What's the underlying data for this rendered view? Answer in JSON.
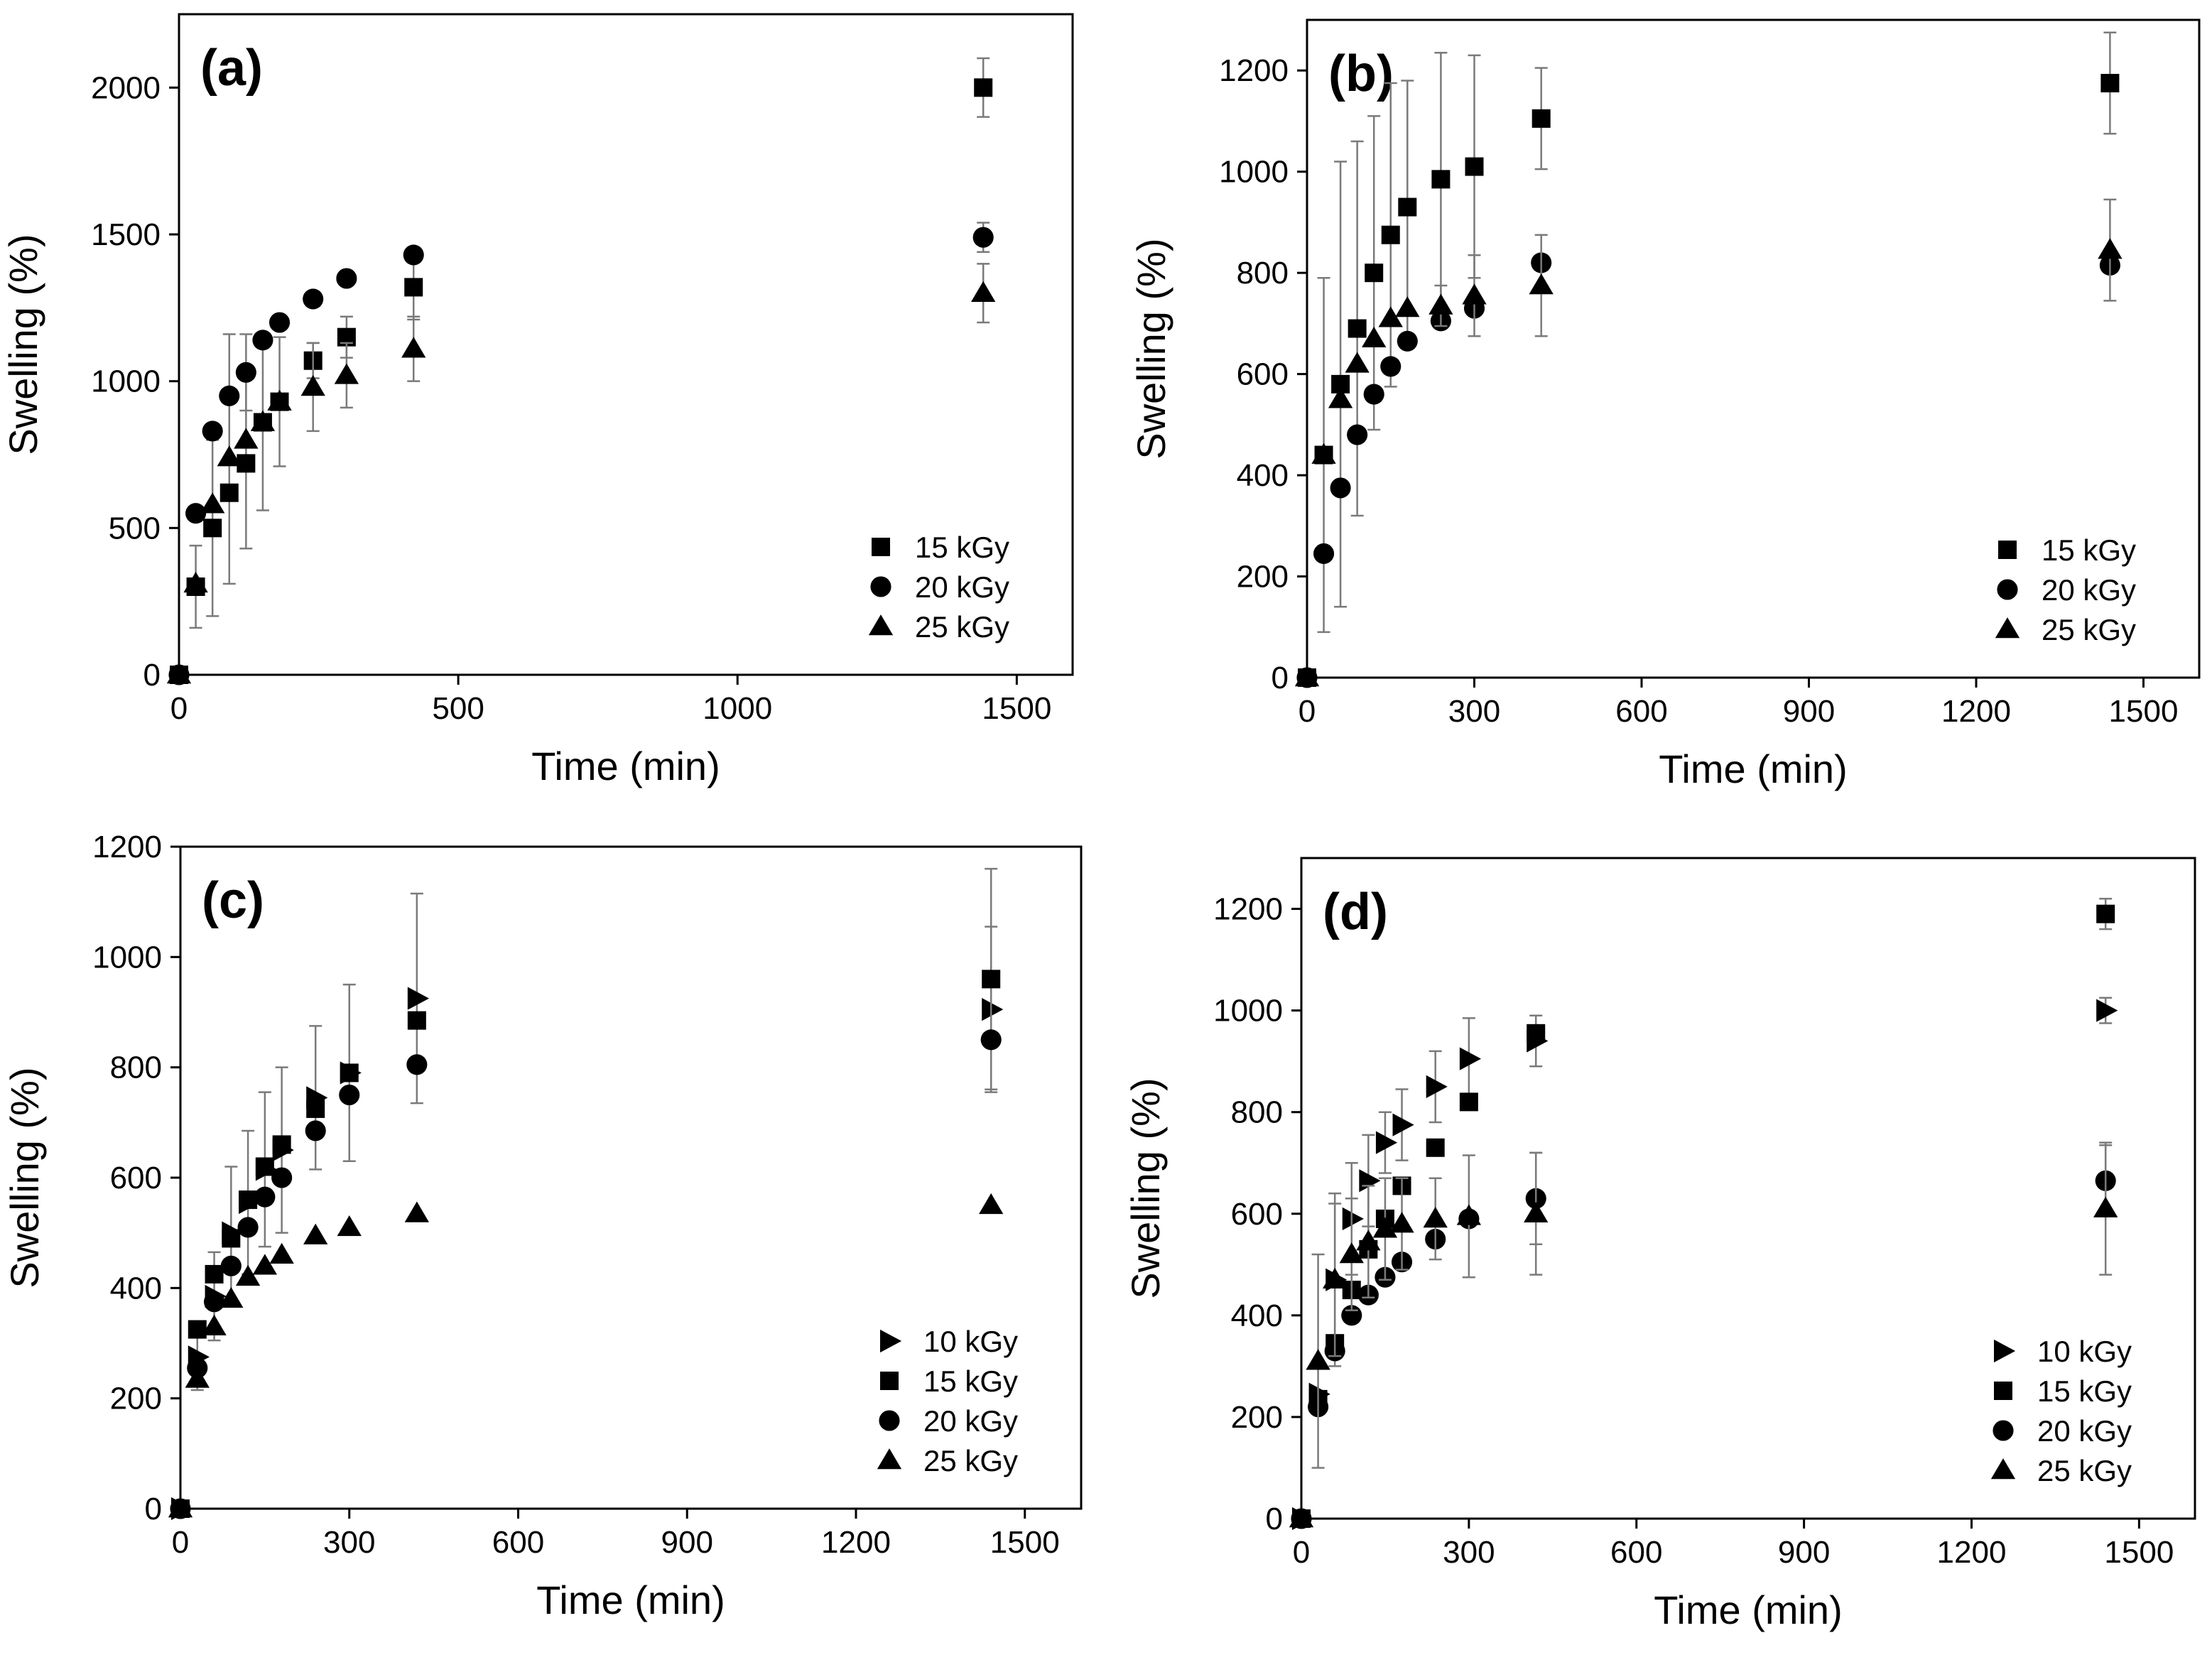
{
  "chart_data": [
    {
      "type": "scatter",
      "panel_label": "(a)",
      "xlabel": "Time (min)",
      "ylabel": "Swelling (%)",
      "xlim": [
        0,
        1600
      ],
      "ylim": [
        0,
        2250
      ],
      "x_ticks": [
        0,
        500,
        1000,
        1500
      ],
      "y_ticks": [
        0,
        500,
        1000,
        1500,
        2000
      ],
      "legend_position": "bottom-right",
      "series": [
        {
          "name": "15 kGy",
          "marker": "square",
          "x": [
            0,
            30,
            60,
            90,
            120,
            150,
            180,
            240,
            300,
            420,
            1440
          ],
          "y": [
            0,
            300,
            500,
            620,
            720,
            860,
            930,
            1070,
            1150,
            1320,
            2000
          ],
          "err": [
            0,
            140,
            300,
            310,
            290,
            300,
            220,
            60,
            70,
            110,
            100
          ]
        },
        {
          "name": "20 kGy",
          "marker": "circle",
          "x": [
            0,
            30,
            60,
            90,
            120,
            150,
            180,
            240,
            300,
            420,
            1440
          ],
          "y": [
            0,
            550,
            830,
            950,
            1030,
            1140,
            1200,
            1280,
            1350,
            1430,
            1490
          ],
          "err": [
            0,
            0,
            0,
            210,
            130,
            0,
            0,
            0,
            0,
            0,
            50
          ]
        },
        {
          "name": "25 kGy",
          "marker": "triangle-up",
          "x": [
            0,
            30,
            60,
            90,
            120,
            150,
            180,
            240,
            300,
            420,
            1440
          ],
          "y": [
            0,
            310,
            580,
            740,
            800,
            860,
            930,
            980,
            1020,
            1110,
            1300
          ],
          "err": [
            0,
            0,
            0,
            0,
            0,
            0,
            0,
            150,
            110,
            110,
            100
          ]
        }
      ]
    },
    {
      "type": "scatter",
      "panel_label": "(b)",
      "xlabel": "Time (min)",
      "ylabel": "Swelling (%)",
      "xlim": [
        0,
        1600
      ],
      "ylim": [
        0,
        1300
      ],
      "x_ticks": [
        0,
        300,
        600,
        900,
        1200,
        1500
      ],
      "y_ticks": [
        0,
        200,
        400,
        600,
        800,
        1000,
        1200
      ],
      "legend_position": "bottom-right",
      "series": [
        {
          "name": "15 kGy",
          "marker": "square",
          "x": [
            0,
            30,
            60,
            90,
            120,
            150,
            180,
            240,
            300,
            420,
            1440
          ],
          "y": [
            0,
            440,
            580,
            690,
            800,
            875,
            930,
            985,
            1010,
            1105,
            1175
          ],
          "err": [
            0,
            350,
            440,
            370,
            310,
            300,
            250,
            250,
            220,
            100,
            100
          ]
        },
        {
          "name": "20 kGy",
          "marker": "circle",
          "x": [
            0,
            30,
            60,
            90,
            120,
            150,
            180,
            240,
            300,
            420,
            1440
          ],
          "y": [
            0,
            245,
            375,
            480,
            560,
            615,
            665,
            705,
            730,
            820,
            815
          ]
        },
        {
          "name": "25 kGy",
          "marker": "triangle-up",
          "x": [
            0,
            30,
            60,
            90,
            120,
            150,
            180,
            240,
            300,
            420,
            1440
          ],
          "y": [
            0,
            440,
            550,
            620,
            670,
            710,
            730,
            735,
            755,
            775,
            845
          ],
          "err": [
            0,
            0,
            0,
            0,
            0,
            0,
            0,
            40,
            80,
            100,
            100
          ]
        }
      ]
    },
    {
      "type": "scatter",
      "panel_label": "(c)",
      "xlabel": "Time (min)",
      "ylabel": "Swelling (%)",
      "xlim": [
        0,
        1600
      ],
      "ylim": [
        0,
        1200
      ],
      "x_ticks": [
        0,
        300,
        600,
        900,
        1200,
        1500
      ],
      "y_ticks": [
        0,
        200,
        400,
        600,
        800,
        1000,
        1200
      ],
      "legend_position": "bottom-right",
      "series": [
        {
          "name": "10 kGy",
          "marker": "triangle-right",
          "x": [
            0,
            30,
            60,
            90,
            120,
            150,
            180,
            240,
            300,
            420,
            1440
          ],
          "y": [
            0,
            275,
            385,
            500,
            555,
            615,
            650,
            745,
            790,
            925,
            905
          ],
          "err": [
            0,
            60,
            80,
            120,
            130,
            140,
            150,
            130,
            160,
            190,
            150
          ]
        },
        {
          "name": "15 kGy",
          "marker": "square",
          "x": [
            0,
            30,
            60,
            90,
            120,
            150,
            180,
            240,
            300,
            420,
            1440
          ],
          "y": [
            0,
            325,
            425,
            490,
            560,
            620,
            660,
            725,
            790,
            885,
            960
          ],
          "err": [
            0,
            0,
            0,
            0,
            0,
            0,
            0,
            0,
            0,
            0,
            200
          ]
        },
        {
          "name": "20 kGy",
          "marker": "circle",
          "x": [
            0,
            30,
            60,
            90,
            120,
            150,
            180,
            240,
            300,
            420,
            1440
          ],
          "y": [
            0,
            255,
            375,
            440,
            510,
            565,
            600,
            685,
            750,
            805,
            850
          ]
        },
        {
          "name": "25 kGy",
          "marker": "triangle-up",
          "x": [
            0,
            30,
            60,
            90,
            120,
            150,
            180,
            240,
            300,
            420,
            1440
          ],
          "y": [
            0,
            235,
            330,
            380,
            420,
            440,
            460,
            495,
            510,
            535,
            550
          ]
        }
      ]
    },
    {
      "type": "scatter",
      "panel_label": "(d)",
      "xlabel": "Time (min)",
      "ylabel": "Swelling (%)",
      "xlim": [
        0,
        1600
      ],
      "ylim": [
        0,
        1300
      ],
      "x_ticks": [
        0,
        300,
        600,
        900,
        1200,
        1500
      ],
      "y_ticks": [
        0,
        200,
        400,
        600,
        800,
        1000,
        1200
      ],
      "legend_position": "bottom-right",
      "series": [
        {
          "name": "10 kGy",
          "marker": "triangle-right",
          "x": [
            0,
            30,
            60,
            90,
            120,
            150,
            180,
            240,
            300,
            420,
            1440
          ],
          "y": [
            0,
            245,
            470,
            590,
            665,
            740,
            775,
            850,
            905,
            940,
            1000
          ],
          "err": [
            0,
            0,
            170,
            110,
            90,
            60,
            70,
            70,
            80,
            50,
            25
          ]
        },
        {
          "name": "15 kGy",
          "marker": "square",
          "x": [
            0,
            30,
            60,
            90,
            120,
            150,
            180,
            240,
            300,
            420,
            1440
          ],
          "y": [
            0,
            235,
            345,
            450,
            530,
            590,
            655,
            730,
            820,
            955,
            1190
          ],
          "err": [
            0,
            0,
            0,
            0,
            0,
            0,
            0,
            0,
            0,
            0,
            30
          ]
        },
        {
          "name": "20 kGy",
          "marker": "circle",
          "x": [
            0,
            30,
            60,
            90,
            120,
            150,
            180,
            240,
            300,
            420,
            1440
          ],
          "y": [
            0,
            220,
            330,
            400,
            440,
            475,
            505,
            550,
            590,
            630,
            665
          ],
          "err": [
            0,
            0,
            0,
            0,
            0,
            0,
            0,
            0,
            0,
            90,
            70
          ]
        },
        {
          "name": "25 kGy",
          "marker": "triangle-up",
          "x": [
            0,
            30,
            60,
            90,
            120,
            150,
            180,
            240,
            300,
            420,
            1440
          ],
          "y": [
            0,
            310,
            470,
            520,
            545,
            570,
            580,
            590,
            595,
            600,
            610
          ],
          "err": [
            0,
            210,
            150,
            110,
            110,
            100,
            90,
            80,
            120,
            120,
            130
          ]
        }
      ]
    }
  ]
}
